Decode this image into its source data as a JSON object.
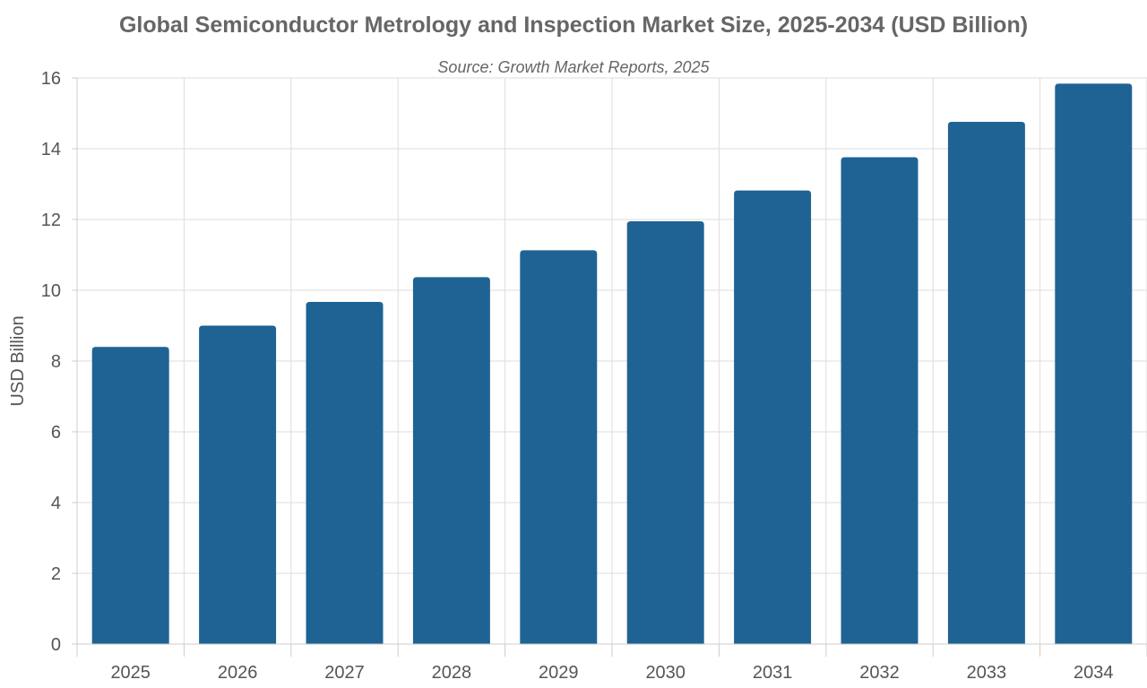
{
  "chart_data": {
    "type": "bar",
    "title": "Global Semiconductor Metrology and Inspection Market Size, 2025-2034 (USD Billion)",
    "subtitle": "Source: Growth Market Reports, 2025",
    "xlabel": "",
    "ylabel": "USD Billion",
    "categories": [
      "2025",
      "2026",
      "2027",
      "2028",
      "2029",
      "2030",
      "2031",
      "2032",
      "2033",
      "2034"
    ],
    "values": [
      8.4,
      9.0,
      9.67,
      10.37,
      11.13,
      11.95,
      12.82,
      13.76,
      14.76,
      15.84
    ],
    "ylim": [
      0,
      16
    ],
    "yticks": [
      "0",
      "2",
      "4",
      "6",
      "8",
      "10",
      "12",
      "14",
      "16"
    ],
    "grid": true,
    "bar_color": "#1f6394"
  }
}
